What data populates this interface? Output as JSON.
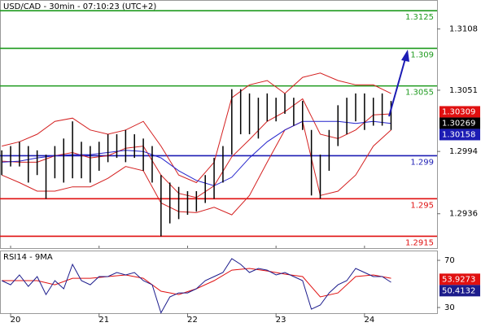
{
  "chart_data": {
    "type": "ohlc",
    "title": "USD/CAD - 30min - 07:10:23 (UTC+2)",
    "x": [
      19.9,
      20.0,
      20.1,
      20.2,
      20.3,
      20.4,
      20.5,
      20.6,
      20.7,
      20.8,
      20.9,
      21.0,
      21.1,
      21.2,
      21.3,
      21.4,
      21.5,
      21.6,
      21.7,
      21.8,
      21.9,
      22.0,
      22.1,
      22.2,
      22.3,
      22.4,
      22.5,
      22.6,
      22.7,
      22.8,
      22.9,
      23.0,
      23.1,
      23.2,
      23.3,
      23.4,
      23.5,
      23.6,
      23.7,
      23.8,
      23.9,
      24.0,
      24.1,
      24.2,
      24.3
    ],
    "high": [
      1.2995,
      1.2999,
      1.3003,
      1.2999,
      1.2995,
      1.2991,
      1.2999,
      1.3006,
      1.3022,
      1.3003,
      1.2999,
      1.3003,
      1.301,
      1.301,
      1.3014,
      1.301,
      1.3006,
      1.2999,
      1.2972,
      1.2965,
      1.2961,
      1.2957,
      1.2957,
      1.2972,
      1.2988,
      1.2999,
      1.3052,
      1.3052,
      1.3048,
      1.3044,
      1.3048,
      1.3044,
      1.3048,
      1.3044,
      1.3041,
      1.3014,
      1.2991,
      1.3014,
      1.3037,
      1.3044,
      1.3048,
      1.3048,
      1.3044,
      1.3048,
      1.3041
    ],
    "low": [
      1.2972,
      1.298,
      1.298,
      1.2965,
      1.2972,
      1.295,
      1.2969,
      1.2965,
      1.2969,
      1.2969,
      1.2965,
      1.2976,
      1.2984,
      1.2988,
      1.2984,
      1.2988,
      1.2976,
      1.2965,
      1.2915,
      1.2927,
      1.2931,
      1.2935,
      1.2938,
      1.2946,
      1.295,
      1.2965,
      1.2991,
      1.301,
      1.301,
      1.3006,
      1.3022,
      1.3022,
      1.3029,
      1.3018,
      1.3014,
      1.2953,
      1.295,
      1.2976,
      1.2999,
      1.301,
      1.3022,
      1.3014,
      1.3018,
      1.3018,
      1.3014
    ],
    "bar_color": "#000000",
    "xlim": [
      19.88,
      24.82
    ],
    "xticks": [
      20,
      21,
      22,
      23,
      24
    ],
    "ylim": [
      1.2904,
      1.3135
    ],
    "yticks": [
      1.3108,
      1.3051,
      1.2994,
      1.2936
    ],
    "levels": [
      {
        "value": 1.3125,
        "color": "#1e9a1e"
      },
      {
        "value": 1.309,
        "color": "#1e9a1e"
      },
      {
        "value": 1.3055,
        "color": "#1e9a1e"
      },
      {
        "value": 1.299,
        "color": "#1c1cb4"
      },
      {
        "value": 1.295,
        "color": "#e01010"
      },
      {
        "value": 1.2915,
        "color": "#e01010"
      }
    ],
    "indicator_x": [
      19.9,
      20.1,
      20.3,
      20.5,
      20.7,
      20.9,
      21.1,
      21.3,
      21.5,
      21.7,
      21.9,
      22.1,
      22.3,
      22.5,
      22.7,
      22.9,
      23.1,
      23.3,
      23.5,
      23.7,
      23.9,
      24.1,
      24.3
    ],
    "bollinger_color": "#d42020",
    "bollinger_upper": [
      1.2999,
      1.3003,
      1.301,
      1.3022,
      1.3025,
      1.3014,
      1.301,
      1.3014,
      1.3022,
      1.2999,
      1.2972,
      1.2965,
      1.2984,
      1.3044,
      1.3056,
      1.306,
      1.3048,
      1.3063,
      1.3067,
      1.306,
      1.3056,
      1.3056,
      1.3048
    ],
    "bollinger_middle": [
      1.2985,
      1.2984,
      1.2984,
      1.299,
      1.2993,
      1.2988,
      1.299,
      1.2997,
      1.2999,
      1.2972,
      1.2955,
      1.2951,
      1.2962,
      1.2989,
      1.3005,
      1.3022,
      1.3031,
      1.3043,
      1.301,
      1.3006,
      1.3014,
      1.3028,
      1.3029
    ],
    "bollinger_lower": [
      1.2972,
      1.2965,
      1.2957,
      1.2957,
      1.2961,
      1.2961,
      1.2969,
      1.298,
      1.2976,
      1.2946,
      1.2938,
      1.2937,
      1.2942,
      1.2935,
      1.2953,
      1.2984,
      1.3014,
      1.3022,
      1.2953,
      1.2957,
      1.2972,
      1.2999,
      1.3014
    ],
    "ma_color": "#2222cc",
    "ma": [
      1.2984,
      1.2985,
      1.2988,
      1.299,
      1.2991,
      1.2991,
      1.2993,
      1.2995,
      1.2994,
      1.2988,
      1.2976,
      1.2967,
      1.2962,
      1.297,
      1.2988,
      1.3003,
      1.3014,
      1.3022,
      1.3022,
      1.3022,
      1.302,
      1.3022,
      1.302
    ],
    "price_labels": [
      {
        "value": 1.30309,
        "color": "#e01010"
      },
      {
        "value": 1.30269,
        "color": "#000000"
      },
      {
        "value": 1.30158,
        "color": "#1c1cb4"
      }
    ],
    "rsi": {
      "title": "RSI14 - 9MA",
      "color": "#1c1c8c",
      "ma_color": "#e01010",
      "values": [
        52.8,
        49.3,
        57.6,
        47.9,
        56.2,
        41.0,
        52.8,
        45.9,
        66.6,
        52.8,
        49.3,
        56.2,
        56.2,
        59.7,
        57.6,
        59.7,
        52.8,
        49.3,
        25.5,
        39.0,
        42.4,
        42.4,
        45.9,
        52.8,
        56.2,
        59.7,
        71.4,
        66.6,
        59.7,
        63.1,
        61.7,
        57.6,
        59.7,
        56.2,
        52.8,
        28.6,
        32.1,
        42.4,
        49.3,
        52.8,
        63.1,
        59.7,
        56.2,
        56.2,
        51.4
      ],
      "ma": [
        52.8,
        52.8,
        52.8,
        49.3,
        54.8,
        54.8,
        56.2,
        57.6,
        54.8,
        43.8,
        41.0,
        45.9,
        52.8,
        61.7,
        63.1,
        61.0,
        58.3,
        56.2,
        39.0,
        42.4,
        56.2,
        57.6,
        54.8
      ],
      "ylim": [
        25.2,
        78.3
      ],
      "yticks": [
        70,
        30
      ],
      "labels": [
        {
          "value": 53.9273,
          "color": "#e01010"
        },
        {
          "value": 50.4132,
          "color": "#1c1c8c"
        }
      ]
    }
  }
}
